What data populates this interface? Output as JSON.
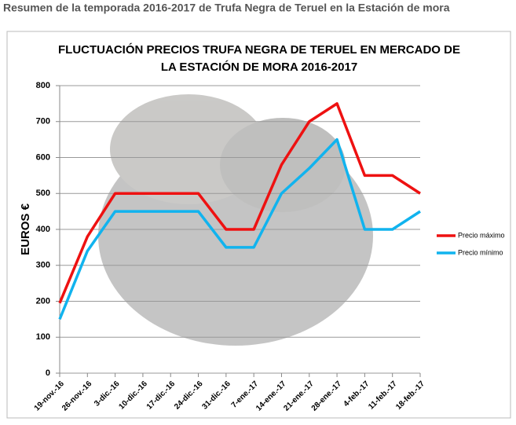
{
  "page": {
    "heading": "Resumen de la temporada 2016-2017 de Trufa Negra de Teruel en la Estación de mora"
  },
  "chart_data": {
    "type": "line",
    "title": [
      "FLUCTUACIÓN  PRECIOS TRUFA NEGRA DE TERUEL EN MERCADO DE",
      "LA ESTACIÓN DE MORA 2016-2017"
    ],
    "y_label": "EUROS €",
    "categories": [
      "19-nov.-16",
      "26-nov.-16",
      "3-dic.-16",
      "10-dic.-16",
      "17-dic.-16",
      "24-dic.-16",
      "31-dic.-16",
      "7-ene.-17",
      "14-ene.-17",
      "21-ene.-17",
      "28-ene.-17",
      "4-feb.-17",
      "11-feb.-17",
      "18-feb.-17"
    ],
    "series": [
      {
        "name": "Precio máximo",
        "color": "#ee1111",
        "values": [
          195,
          380,
          500,
          500,
          500,
          500,
          400,
          400,
          580,
          700,
          750,
          550,
          550,
          500
        ]
      },
      {
        "name": "Precio mínimo",
        "color": "#11b3ee",
        "values": [
          150,
          340,
          450,
          450,
          450,
          450,
          350,
          350,
          500,
          570,
          650,
          400,
          400,
          450
        ]
      }
    ],
    "ylim": [
      0,
      800
    ],
    "yticks": [
      0,
      100,
      200,
      300,
      400,
      500,
      600,
      700,
      800
    ],
    "grid": true,
    "legend": "right"
  }
}
